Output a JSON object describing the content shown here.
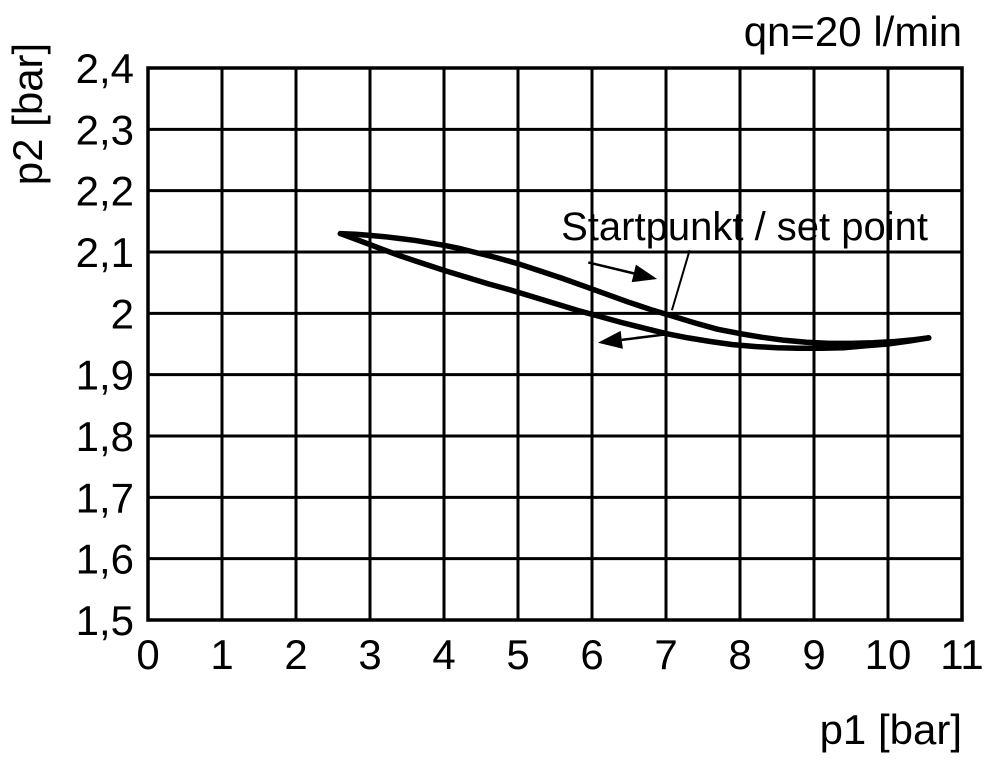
{
  "figure": {
    "background": "#ffffff",
    "ink": "#000000"
  },
  "chart_data": {
    "type": "line",
    "title": "qn=20 l/min",
    "xlabel": "p1 [bar]",
    "ylabel": "p2 [bar]",
    "xlim": [
      0,
      11
    ],
    "ylim": [
      1.5,
      2.4
    ],
    "grid": true,
    "legend": "none",
    "x_tick_values": [
      0,
      1,
      2,
      3,
      4,
      5,
      6,
      7,
      8,
      9,
      10,
      11
    ],
    "x_tick_labels": [
      "0",
      "1",
      "2",
      "3",
      "4",
      "5",
      "6",
      "7",
      "8",
      "9",
      "10",
      "11"
    ],
    "y_tick_values": [
      2.4,
      2.3,
      2.2,
      2.1,
      2.0,
      1.9,
      1.8,
      1.7,
      1.6,
      1.5
    ],
    "y_tick_labels": [
      "2,4",
      "2,3",
      "2,2",
      "2,1",
      "2",
      "1,9",
      "1,8",
      "1,7",
      "1,6",
      "1,5"
    ],
    "series": [
      {
        "name": "upper-branch",
        "points": [
          [
            2.6,
            2.13
          ],
          [
            2.8,
            2.129
          ],
          [
            3.0,
            2.127
          ],
          [
            3.2,
            2.125
          ],
          [
            3.4,
            2.122
          ],
          [
            3.6,
            2.119
          ],
          [
            3.8,
            2.115
          ],
          [
            4.0,
            2.111
          ],
          [
            4.2,
            2.106
          ],
          [
            4.4,
            2.1
          ],
          [
            4.7,
            2.091
          ],
          [
            5.0,
            2.081
          ],
          [
            5.3,
            2.069
          ],
          [
            5.6,
            2.057
          ],
          [
            5.9,
            2.044
          ],
          [
            6.2,
            2.031
          ],
          [
            6.5,
            2.018
          ],
          [
            6.8,
            2.006
          ],
          [
            7.1,
            1.995
          ],
          [
            7.4,
            1.984
          ],
          [
            7.7,
            1.974
          ],
          [
            8.0,
            1.967
          ],
          [
            8.3,
            1.961
          ],
          [
            8.6,
            1.956
          ],
          [
            8.9,
            1.953
          ],
          [
            9.2,
            1.951
          ],
          [
            9.5,
            1.951
          ],
          [
            9.8,
            1.952
          ],
          [
            10.1,
            1.954
          ],
          [
            10.35,
            1.957
          ],
          [
            10.55,
            1.96
          ]
        ]
      },
      {
        "name": "lower-branch",
        "points": [
          [
            2.6,
            2.13
          ],
          [
            2.8,
            2.121
          ],
          [
            3.0,
            2.112
          ],
          [
            3.2,
            2.103
          ],
          [
            3.4,
            2.094
          ],
          [
            3.6,
            2.086
          ],
          [
            3.8,
            2.078
          ],
          [
            4.0,
            2.07
          ],
          [
            4.3,
            2.059
          ],
          [
            4.6,
            2.048
          ],
          [
            4.9,
            2.038
          ],
          [
            5.2,
            2.027
          ],
          [
            5.5,
            2.016
          ],
          [
            5.8,
            2.005
          ],
          [
            6.1,
            1.995
          ],
          [
            6.4,
            1.985
          ],
          [
            6.7,
            1.976
          ],
          [
            7.0,
            1.967
          ],
          [
            7.3,
            1.96
          ],
          [
            7.6,
            1.954
          ],
          [
            7.9,
            1.949
          ],
          [
            8.2,
            1.946
          ],
          [
            8.5,
            1.944
          ],
          [
            8.8,
            1.943
          ],
          [
            9.1,
            1.943
          ],
          [
            9.4,
            1.944
          ],
          [
            9.7,
            1.947
          ],
          [
            10.0,
            1.95
          ],
          [
            10.3,
            1.955
          ],
          [
            10.55,
            1.96
          ]
        ]
      }
    ],
    "arrows": [
      {
        "name": "forward-direction-arrow",
        "from": [
          5.95,
          2.083
        ],
        "to": [
          6.88,
          2.056
        ]
      },
      {
        "name": "return-direction-arrow",
        "from": [
          7.02,
          1.966
        ],
        "to": [
          6.08,
          1.952
        ]
      }
    ],
    "annotation": {
      "text": "Startpunkt / set point",
      "leader_start": [
        7.32,
        2.103
      ],
      "target": [
        7.08,
        2.005
      ]
    }
  }
}
